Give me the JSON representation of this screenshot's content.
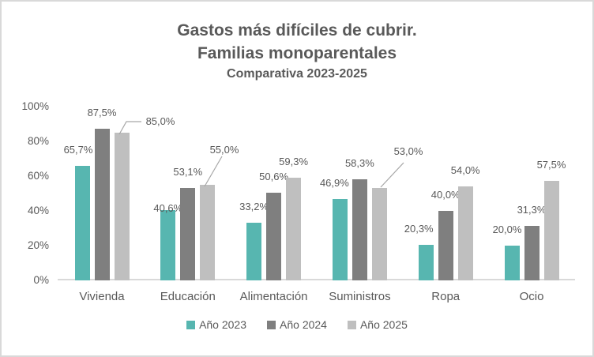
{
  "chart_data": {
    "type": "bar",
    "title_lines": [
      "Gastos más difíciles de cubrir.",
      "Familias monoparentales",
      "Comparativa 2023-2025"
    ],
    "categories": [
      "Vivienda",
      "Educación",
      "Alimentación",
      "Suministros",
      "Ropa",
      "Ocio"
    ],
    "series": [
      {
        "name": "Año 2023",
        "color": "#57b6b0",
        "values": [
          65.7,
          40.6,
          33.2,
          46.9,
          20.3,
          20.0
        ],
        "labels": [
          "65,7%",
          "40,6%",
          "33,2%",
          "46,9%",
          "20,3%",
          "20,0%"
        ]
      },
      {
        "name": "Año 2024",
        "color": "#7f7f7f",
        "values": [
          87.5,
          53.1,
          50.6,
          58.3,
          40.0,
          31.3
        ],
        "labels": [
          "87,5%",
          "53,1%",
          "50,6%",
          "58,3%",
          "40,0%",
          "31,3%"
        ]
      },
      {
        "name": "Año 2025",
        "color": "#bfbfbf",
        "values": [
          85.0,
          55.0,
          59.3,
          53.0,
          54.0,
          57.5
        ],
        "labels": [
          "85,0%",
          "55,0%",
          "59,3%",
          "53,0%",
          "54,0%",
          "57,5%"
        ]
      }
    ],
    "y_ticks": [
      {
        "label": "0%",
        "value": 0
      },
      {
        "label": "20%",
        "value": 20
      },
      {
        "label": "40%",
        "value": 40
      },
      {
        "label": "60%",
        "value": 60
      },
      {
        "label": "80%",
        "value": 80
      },
      {
        "label": "100%",
        "value": 100
      }
    ],
    "ylim": [
      0,
      100
    ],
    "grid": false,
    "legend_position": "bottom",
    "colors": {
      "text": "#595959",
      "axis_line": "#d9d9d9",
      "leader_line": "#a6a6a6"
    },
    "label_offsets": {
      "0-0": [
        -5,
        0
      ],
      "0-1": [
        0,
        18
      ],
      "0-3": [
        -7,
        0
      ],
      "0-4": [
        -9,
        0
      ],
      "0-5": [
        -6,
        0
      ]
    },
    "callouts": [
      {
        "series_index": 2,
        "category_index": 0,
        "label_center": [
          203,
          154
        ],
        "leader": [
          [
            179,
            154
          ],
          [
            160,
            154
          ],
          [
            151,
            170
          ]
        ]
      },
      {
        "series_index": 2,
        "category_index": 1,
        "label_center": [
          284,
          190
        ],
        "leader": [
          [
            281,
            198
          ],
          [
            259,
            236
          ]
        ]
      },
      {
        "series_index": 2,
        "category_index": 3,
        "label_center": [
          517,
          192
        ],
        "leader": [
          [
            511,
            206
          ],
          [
            482,
            237
          ]
        ]
      }
    ]
  }
}
